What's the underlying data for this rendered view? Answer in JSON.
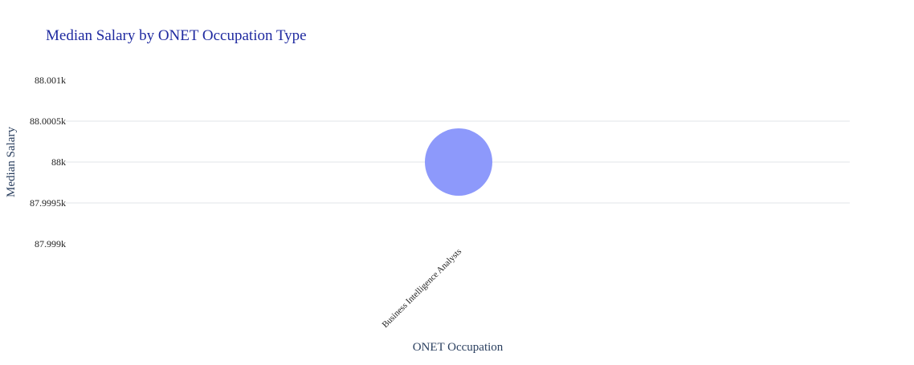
{
  "chart_data": {
    "type": "scatter",
    "title": "Median Salary by ONET Occupation Type",
    "xlabel": "ONET Occupation",
    "ylabel": "Median Salary",
    "categories": [
      "Business Intelligence Analysts"
    ],
    "series": [
      {
        "points": [
          {
            "x": "Business Intelligence Analysts",
            "y": 88000
          }
        ]
      }
    ],
    "ylim": [
      87999,
      88001
    ],
    "yticks": [
      87999,
      87999.5,
      88000,
      88000.5,
      88001
    ],
    "ytick_labels": [
      "87.999k",
      "87.9995k",
      "88k",
      "88.0005k",
      "88.001k"
    ],
    "grid": true,
    "marker_color": "#8d99fb",
    "title_color": "#1f2aa0",
    "axis_title_color": "#2a3f5f",
    "tick_label_color": "#222222",
    "grid_color": "#e2e6ea"
  }
}
